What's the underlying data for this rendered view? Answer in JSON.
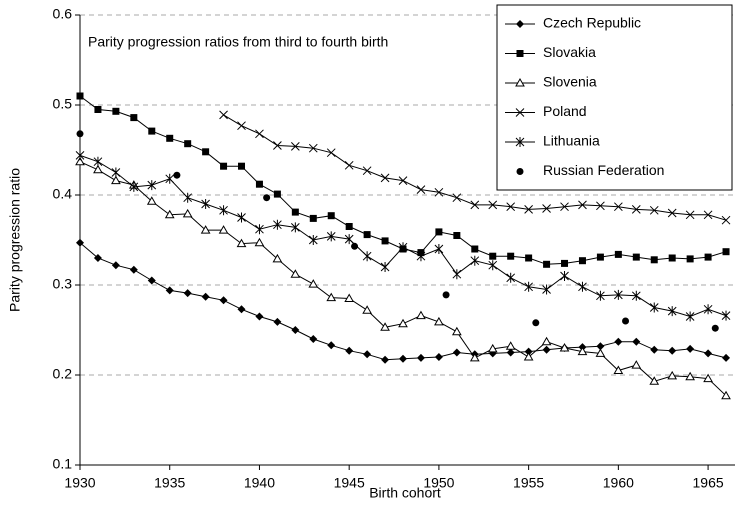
{
  "chart_data": {
    "type": "line",
    "annotation": "Parity progression ratios from third to fourth birth",
    "x_label": "Birth cohort",
    "y_label": "Parity progression ratio",
    "xlim": [
      1930,
      1966.5
    ],
    "xticks": [
      1930,
      1935,
      1940,
      1945,
      1950,
      1955,
      1960,
      1965
    ],
    "ylim": [
      0.1,
      0.6
    ],
    "yticks": [
      0.1,
      0.2,
      0.3,
      0.4,
      0.5,
      0.6
    ],
    "grid": true,
    "legend": "upper right",
    "series": [
      {
        "name": "Czech Republic",
        "color": "#000000",
        "marker": "diamond",
        "line": true,
        "x": [
          1930,
          1931,
          1932,
          1933,
          1934,
          1935,
          1936,
          1937,
          1938,
          1939,
          1940,
          1941,
          1942,
          1943,
          1944,
          1945,
          1946,
          1947,
          1948,
          1949,
          1950,
          1951,
          1952,
          1953,
          1954,
          1955,
          1956,
          1957,
          1958,
          1959,
          1960,
          1961,
          1962,
          1963,
          1964,
          1965,
          1966
        ],
        "values": [
          0.347,
          0.33,
          0.322,
          0.317,
          0.305,
          0.294,
          0.291,
          0.287,
          0.283,
          0.273,
          0.265,
          0.259,
          0.25,
          0.24,
          0.233,
          0.227,
          0.223,
          0.217,
          0.218,
          0.219,
          0.22,
          0.225,
          0.223,
          0.224,
          0.225,
          0.226,
          0.228,
          0.23,
          0.231,
          0.232,
          0.237,
          0.237,
          0.228,
          0.227,
          0.229,
          0.224,
          0.219
        ]
      },
      {
        "name": "Slovakia",
        "color": "#000000",
        "marker": "square",
        "line": true,
        "x": [
          1930,
          1931,
          1932,
          1933,
          1934,
          1935,
          1936,
          1937,
          1938,
          1939,
          1940,
          1941,
          1942,
          1943,
          1944,
          1945,
          1946,
          1947,
          1948,
          1949,
          1950,
          1951,
          1952,
          1953,
          1954,
          1955,
          1956,
          1957,
          1958,
          1959,
          1960,
          1961,
          1962,
          1963,
          1964,
          1965,
          1966
        ],
        "values": [
          0.51,
          0.495,
          0.493,
          0.486,
          0.471,
          0.463,
          0.457,
          0.448,
          0.432,
          0.432,
          0.412,
          0.401,
          0.381,
          0.374,
          0.377,
          0.365,
          0.356,
          0.349,
          0.34,
          0.336,
          0.359,
          0.355,
          0.34,
          0.332,
          0.332,
          0.33,
          0.323,
          0.324,
          0.327,
          0.331,
          0.334,
          0.331,
          0.328,
          0.33,
          0.329,
          0.331,
          0.337
        ]
      },
      {
        "name": "Slovenia",
        "color": "#000000",
        "marker": "triangle-open",
        "line": true,
        "x": [
          1930,
          1931,
          1932,
          1933,
          1934,
          1935,
          1936,
          1937,
          1938,
          1939,
          1940,
          1941,
          1942,
          1943,
          1944,
          1945,
          1946,
          1947,
          1948,
          1949,
          1950,
          1951,
          1952,
          1953,
          1954,
          1955,
          1956,
          1957,
          1958,
          1959,
          1960,
          1961,
          1962,
          1963,
          1964,
          1965,
          1966
        ],
        "values": [
          0.437,
          0.428,
          0.416,
          0.411,
          0.393,
          0.378,
          0.379,
          0.361,
          0.361,
          0.346,
          0.347,
          0.329,
          0.312,
          0.301,
          0.286,
          0.285,
          0.272,
          0.253,
          0.257,
          0.266,
          0.259,
          0.248,
          0.219,
          0.229,
          0.232,
          0.22,
          0.237,
          0.23,
          0.226,
          0.224,
          0.205,
          0.211,
          0.193,
          0.199,
          0.198,
          0.196,
          0.177
        ]
      },
      {
        "name": "Poland",
        "color": "#000000",
        "marker": "x",
        "line": true,
        "x": [
          1938,
          1939,
          1940,
          1941,
          1942,
          1943,
          1944,
          1945,
          1946,
          1947,
          1948,
          1949,
          1950,
          1951,
          1952,
          1953,
          1954,
          1955,
          1956,
          1957,
          1958,
          1959,
          1960,
          1961,
          1962,
          1963,
          1964,
          1965,
          1966
        ],
        "values": [
          0.489,
          0.477,
          0.468,
          0.455,
          0.454,
          0.452,
          0.447,
          0.433,
          0.427,
          0.419,
          0.416,
          0.406,
          0.403,
          0.397,
          0.389,
          0.389,
          0.387,
          0.384,
          0.385,
          0.387,
          0.389,
          0.388,
          0.387,
          0.384,
          0.383,
          0.38,
          0.378,
          0.378,
          0.372
        ]
      },
      {
        "name": "Lithuania",
        "color": "#000000",
        "marker": "asterisk",
        "line": true,
        "x": [
          1930,
          1931,
          1932,
          1933,
          1934,
          1935,
          1936,
          1937,
          1938,
          1939,
          1940,
          1941,
          1942,
          1943,
          1944,
          1945,
          1946,
          1947,
          1948,
          1949,
          1950,
          1951,
          1952,
          1953,
          1954,
          1955,
          1956,
          1957,
          1958,
          1959,
          1960,
          1961,
          1962,
          1963,
          1964,
          1965,
          1966
        ],
        "values": [
          0.444,
          0.437,
          0.425,
          0.409,
          0.411,
          0.418,
          0.397,
          0.39,
          0.383,
          0.375,
          0.362,
          0.367,
          0.364,
          0.35,
          0.354,
          0.351,
          0.332,
          0.32,
          0.342,
          0.332,
          0.34,
          0.312,
          0.327,
          0.322,
          0.308,
          0.298,
          0.295,
          0.31,
          0.298,
          0.288,
          0.289,
          0.288,
          0.275,
          0.271,
          0.265,
          0.273,
          0.266
        ]
      },
      {
        "name": "Russian Federation",
        "color": "#000000",
        "marker": "circle",
        "line": false,
        "x": [
          1930,
          1935.4,
          1940.4,
          1945.3,
          1950.4,
          1955.4,
          1960.4,
          1965.4
        ],
        "values": [
          0.468,
          0.422,
          0.397,
          0.343,
          0.289,
          0.258,
          0.26,
          0.252
        ]
      }
    ]
  }
}
